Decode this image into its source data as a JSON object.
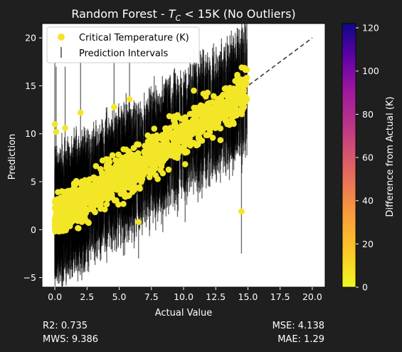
{
  "chart_data": {
    "type": "scatter",
    "title": "Random Forest - T_C < 15K (No Outliers)",
    "title_parts": {
      "prefix": "Random Forest - ",
      "symbol": "T",
      "subscript": "C",
      "suffix": " < 15K (No Outliers)"
    },
    "xlabel": "Actual Value",
    "ylabel": "Prediction",
    "xlim": [
      -1,
      21
    ],
    "ylim": [
      -6,
      21.5
    ],
    "xticks": [
      0.0,
      2.5,
      5.0,
      7.5,
      10.0,
      12.5,
      15.0,
      17.5,
      20.0
    ],
    "xtick_labels": [
      "0.0",
      "2.5",
      "5.0",
      "7.5",
      "10.0",
      "12.5",
      "15.0",
      "17.5",
      "20.0"
    ],
    "yticks": [
      -5,
      0,
      5,
      10,
      15,
      20
    ],
    "ytick_labels": [
      "−5",
      "0",
      "5",
      "10",
      "15",
      "20"
    ],
    "reference_line": {
      "from": [
        0,
        0
      ],
      "to": [
        20,
        20
      ],
      "style": "dashed",
      "color": "#3a3a3a"
    },
    "legend": {
      "placement": "upper-left",
      "entries": [
        "Critical Temperature (K)",
        "Prediction Intervals"
      ]
    },
    "colorbar": {
      "label": "Difference from Actual (K)",
      "ticks": [
        0,
        20,
        40,
        60,
        80,
        100,
        120
      ],
      "range": [
        0,
        122
      ],
      "colormap": "plasma_r"
    },
    "point_color": "#f2e627",
    "interval_color": "#000000",
    "representative_points": [
      {
        "x": 0.0,
        "y": 11.0,
        "lo": 4.0,
        "hi": 17.5
      },
      {
        "x": 0.1,
        "y": 10.2,
        "lo": 3.0,
        "hi": 17.0
      },
      {
        "x": 0.8,
        "y": 10.6,
        "lo": 4.5,
        "hi": 17.0
      },
      {
        "x": 2.0,
        "y": 12.2,
        "lo": 6.0,
        "hi": 18.0
      },
      {
        "x": 4.6,
        "y": 12.8,
        "lo": 7.0,
        "hi": 19.0
      },
      {
        "x": 5.8,
        "y": 13.6,
        "lo": 7.0,
        "hi": 19.5
      },
      {
        "x": 10.8,
        "y": 14.5,
        "lo": 9.0,
        "hi": 19.0
      },
      {
        "x": 14.5,
        "y": 1.9,
        "lo": -2.5,
        "hi": 8.0
      },
      {
        "x": 6.5,
        "y": 0.8,
        "lo": -3.0,
        "hi": 5.5
      },
      {
        "x": 1.0,
        "y": 2.0,
        "lo": -4.5,
        "hi": 7.5
      },
      {
        "x": 7.5,
        "y": 8.0,
        "lo": 2.0,
        "hi": 14.0
      },
      {
        "x": 12.0,
        "y": 10.0,
        "lo": 4.5,
        "hi": 16.0
      },
      {
        "x": 14.8,
        "y": 13.5,
        "lo": 7.5,
        "hi": 18.5
      }
    ]
  },
  "stats": {
    "r2": "R2: 0.735",
    "mws": "MWS: 9.386",
    "mse": "MSE: 4.138",
    "mae": "MAE: 1.29"
  }
}
